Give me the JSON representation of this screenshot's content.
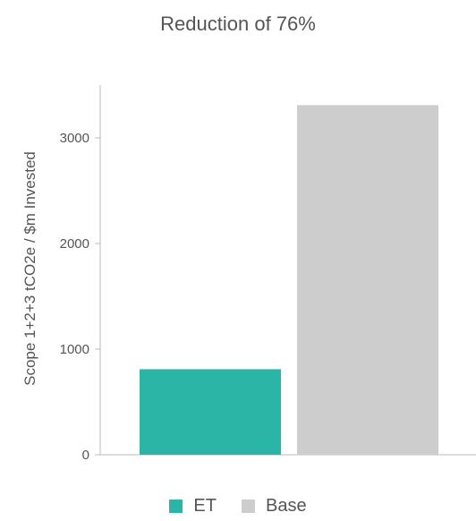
{
  "chart_data": {
    "type": "bar",
    "title": "Reduction of 76%",
    "xlabel": "",
    "ylabel": "Scope 1+2+3 tCO2e / $m Invested",
    "categories": [
      "ET",
      "Base"
    ],
    "values": [
      810,
      3310
    ],
    "colors": [
      "#2ab5a7",
      "#cdcdcd"
    ],
    "ylim": [
      0,
      3500
    ],
    "yticks": [
      0,
      1000,
      2000,
      3000
    ],
    "grid": false,
    "legend_position": "bottom"
  }
}
